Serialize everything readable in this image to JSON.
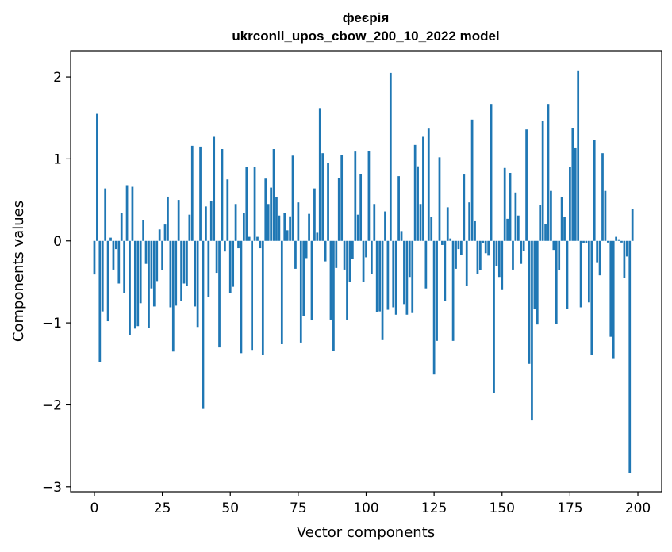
{
  "chart_data": {
    "type": "bar",
    "title": "феєрія",
    "subtitle": "ukrconll_upos_cbow_200_10_2022 model",
    "xlabel": "Vector components",
    "ylabel": "Components values",
    "xlim": [
      -8.75,
      208.75
    ],
    "ylim": [
      -3.06,
      2.32
    ],
    "xticks": [
      0,
      25,
      50,
      75,
      100,
      125,
      150,
      175,
      200
    ],
    "yticks": [
      -3,
      -2,
      -1,
      0,
      1,
      2
    ],
    "ytick_labels": [
      "−3",
      "−2",
      "−1",
      "0",
      "1",
      "2"
    ],
    "bar_color": "#1f77b4",
    "grid": false,
    "values": [
      -0.41,
      1.55,
      -1.48,
      -0.86,
      0.64,
      -0.98,
      0.04,
      -0.35,
      -0.1,
      -0.52,
      0.34,
      -0.64,
      0.68,
      -1.15,
      0.66,
      -1.07,
      -1.04,
      -0.76,
      0.25,
      -0.28,
      -1.06,
      -0.58,
      -0.8,
      -0.49,
      0.14,
      -0.36,
      0.2,
      0.54,
      -0.81,
      -1.35,
      -0.79,
      0.5,
      -0.73,
      -0.52,
      -0.55,
      0.32,
      1.16,
      -0.8,
      -1.05,
      1.15,
      -2.05,
      0.42,
      -0.68,
      0.49,
      1.27,
      -0.39,
      -1.3,
      1.12,
      -0.13,
      0.75,
      -0.64,
      -0.56,
      0.45,
      -0.09,
      -1.37,
      0.34,
      0.9,
      0.05,
      -1.33,
      0.9,
      0.05,
      -0.09,
      -1.39,
      0.76,
      0.45,
      0.65,
      1.12,
      0.53,
      0.31,
      -1.26,
      0.34,
      0.13,
      0.3,
      1.04,
      -0.34,
      0.47,
      -1.24,
      -0.92,
      -0.21,
      0.33,
      -0.97,
      0.64,
      0.1,
      1.62,
      1.07,
      -0.25,
      0.95,
      -0.96,
      -1.34,
      -0.33,
      0.77,
      1.05,
      -0.35,
      -0.96,
      -0.5,
      -0.22,
      1.09,
      0.32,
      0.82,
      -0.5,
      -0.2,
      1.1,
      -0.4,
      0.45,
      -0.87,
      -0.86,
      -1.21,
      0.36,
      -0.84,
      2.05,
      -0.81,
      -0.9,
      0.79,
      0.12,
      -0.77,
      -0.9,
      -0.44,
      -0.88,
      1.17,
      0.91,
      0.45,
      1.27,
      -0.58,
      1.37,
      0.29,
      -1.63,
      -1.22,
      1.02,
      -0.05,
      -0.73,
      0.41,
      0.03,
      -1.22,
      -0.34,
      -0.1,
      -0.17,
      0.81,
      -0.55,
      0.47,
      1.48,
      0.24,
      -0.4,
      -0.36,
      -0.03,
      -0.15,
      -0.18,
      1.67,
      -1.86,
      -0.31,
      -0.44,
      -0.6,
      0.89,
      0.27,
      0.83,
      -0.35,
      0.59,
      0.31,
      -0.28,
      -0.12,
      1.36,
      -1.5,
      -2.19,
      -0.83,
      -1.02,
      0.44,
      1.46,
      0.21,
      1.67,
      0.61,
      -0.11,
      -1.01,
      -0.36,
      0.53,
      0.29,
      -0.83,
      0.9,
      1.38,
      1.14,
      2.08,
      -0.81,
      -0.03,
      -0.03,
      -0.75,
      -1.39,
      1.23,
      -0.26,
      -0.42,
      1.07,
      0.61,
      -0.02,
      -1.17,
      -1.44,
      0.05,
      0.02,
      -0.02,
      -0.45,
      -0.19,
      -2.83,
      0.39
    ]
  }
}
